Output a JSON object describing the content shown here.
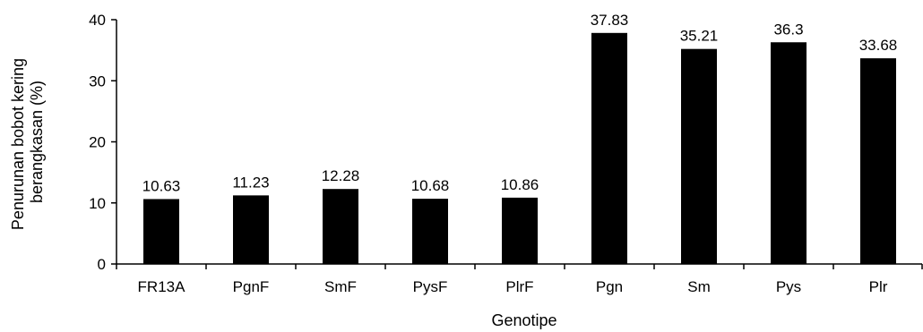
{
  "chart_data": {
    "type": "bar",
    "title": "",
    "xlabel": "Genotipe",
    "ylabel_lines": [
      "Penurunan bobot kering",
      "berangkasan (%)"
    ],
    "categories": [
      "FR13A",
      "PgnF",
      "SmF",
      "PysF",
      "PlrF",
      "Pgn",
      "Sm",
      "Pys",
      "Plr"
    ],
    "values": [
      10.63,
      11.23,
      12.28,
      10.68,
      10.86,
      37.83,
      35.21,
      36.3,
      33.68
    ],
    "value_labels": [
      "10.63",
      "11.23",
      "12.28",
      "10.68",
      "10.86",
      "37.83",
      "35.21",
      "36.3",
      "33.68"
    ],
    "ylim": [
      0,
      40
    ],
    "yticks": [
      0,
      10,
      20,
      30,
      40
    ],
    "grid": false,
    "legend": "none",
    "bar_color": "#000000"
  }
}
